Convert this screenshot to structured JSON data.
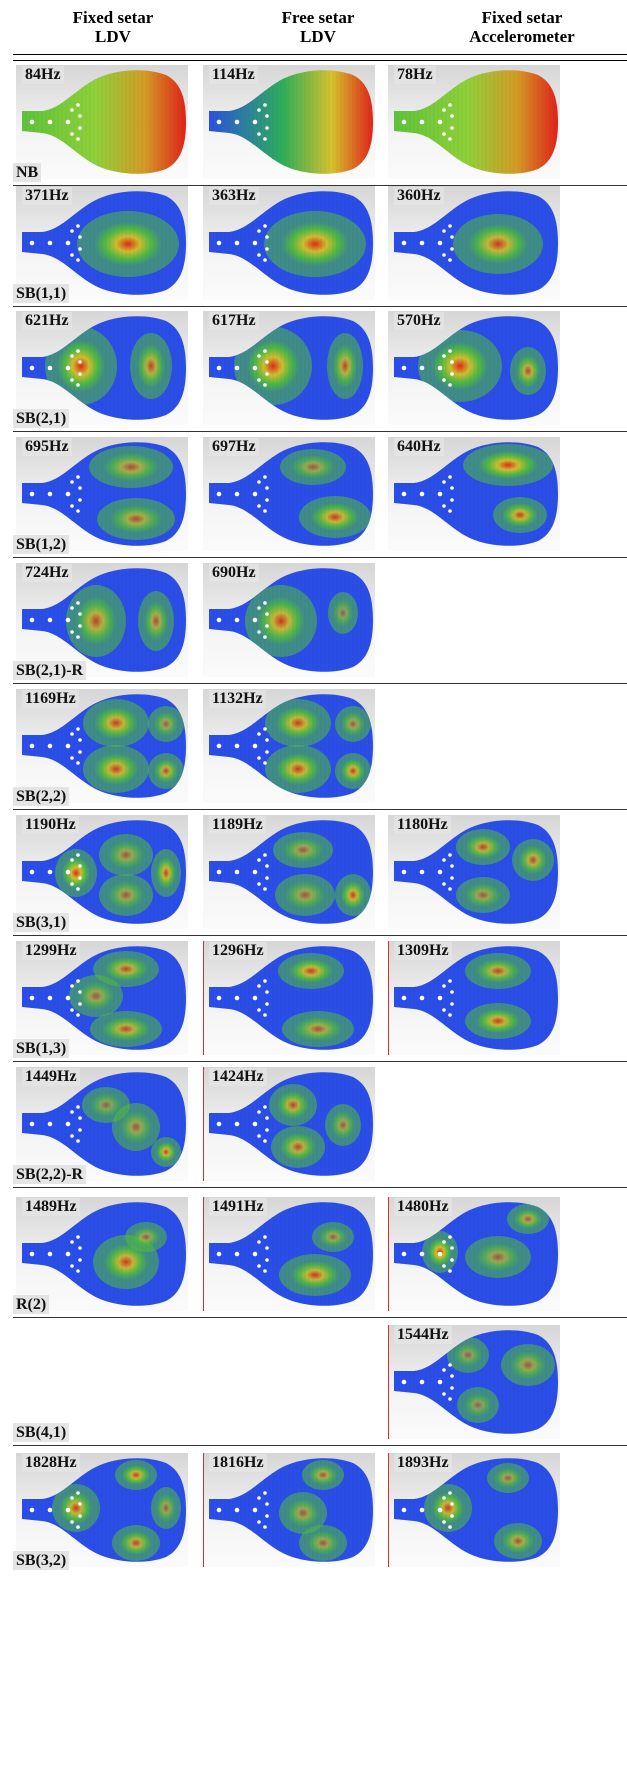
{
  "headers": [
    {
      "line1": "Fixed setar",
      "line2": "LDV"
    },
    {
      "line1": "Free setar",
      "line2": "LDV"
    },
    {
      "line1": "Fixed setar",
      "line2": "Accelerometer"
    }
  ],
  "rows": [
    {
      "mode": "NB",
      "freqs": [
        "84Hz",
        "114Hz",
        "78Hz"
      ]
    },
    {
      "mode": "SB(1,1)",
      "freqs": [
        "371Hz",
        "363Hz",
        "360Hz"
      ]
    },
    {
      "mode": "SB(2,1)",
      "freqs": [
        "621Hz",
        "617Hz",
        "570Hz"
      ]
    },
    {
      "mode": "SB(1,2)",
      "freqs": [
        "695Hz",
        "697Hz",
        "640Hz"
      ]
    },
    {
      "mode": "SB(2,1)-R",
      "freqs": [
        "724Hz",
        "690Hz",
        ""
      ]
    },
    {
      "mode": "SB(2,2)",
      "freqs": [
        "1169Hz",
        "1132Hz",
        ""
      ]
    },
    {
      "mode": "SB(3,1)",
      "freqs": [
        "1190Hz",
        "1189Hz",
        "1180Hz"
      ]
    },
    {
      "mode": "SB(1,3)",
      "freqs": [
        "1299Hz",
        "1296Hz",
        "1309Hz"
      ]
    },
    {
      "mode": "SB(2,2)-R",
      "freqs": [
        "1449Hz",
        "1424Hz",
        ""
      ]
    },
    {
      "mode": "R(2)",
      "freqs": [
        "1489Hz",
        "1491Hz",
        "1480Hz"
      ]
    },
    {
      "mode": "SB(4,1)",
      "freqs": [
        "",
        "",
        "1544Hz"
      ]
    },
    {
      "mode": "SB(3,2)",
      "freqs": [
        "1828Hz",
        "1816Hz",
        "1893Hz"
      ]
    }
  ]
}
